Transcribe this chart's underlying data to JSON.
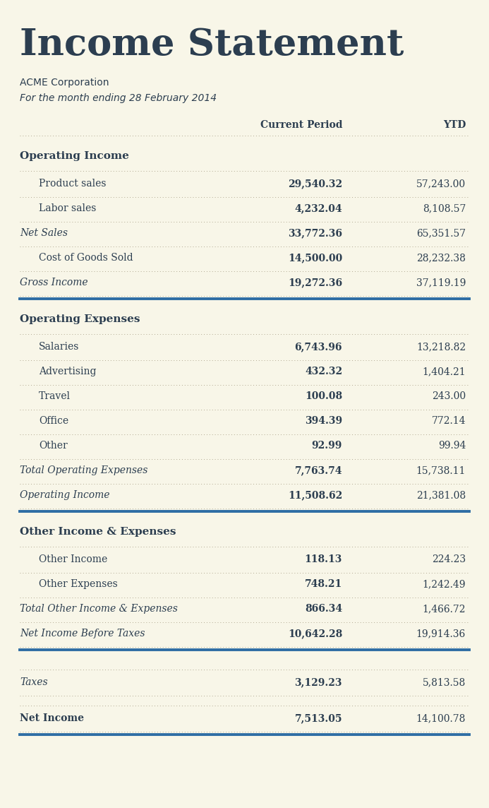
{
  "title": "Income Statement",
  "company": "ACME Corporation",
  "period": "For the month ending 28 February 2014",
  "bg_color": "#f8f6e8",
  "header_color": "#2c3e50",
  "blue_line_color": "#2e6da4",
  "dot_line_color": "#b0a890",
  "col_header": [
    "Current Period",
    "YTD"
  ],
  "sections": [
    {
      "section_title": "Operating Income",
      "rows": [
        {
          "label": "Product sales",
          "cp": "29,540.32",
          "ytd": "57,243.00",
          "indent": true,
          "cp_bold": true,
          "label_italic": false,
          "label_bold": false
        },
        {
          "label": "Labor sales",
          "cp": "4,232.04",
          "ytd": "8,108.57",
          "indent": true,
          "cp_bold": true,
          "label_italic": false,
          "label_bold": false
        },
        {
          "label": "Net Sales",
          "cp": "33,772.36",
          "ytd": "65,351.57",
          "indent": false,
          "cp_bold": true,
          "label_italic": true,
          "label_bold": false
        },
        {
          "label": "Cost of Goods Sold",
          "cp": "14,500.00",
          "ytd": "28,232.38",
          "indent": true,
          "cp_bold": true,
          "label_italic": false,
          "label_bold": false
        },
        {
          "label": "Gross Income",
          "cp": "19,272.36",
          "ytd": "37,119.19",
          "indent": false,
          "cp_bold": true,
          "label_italic": true,
          "label_bold": false
        }
      ],
      "end_thick_line": true
    },
    {
      "section_title": "Operating Expenses",
      "rows": [
        {
          "label": "Salaries",
          "cp": "6,743.96",
          "ytd": "13,218.82",
          "indent": true,
          "cp_bold": true,
          "label_italic": false,
          "label_bold": false
        },
        {
          "label": "Advertising",
          "cp": "432.32",
          "ytd": "1,404.21",
          "indent": true,
          "cp_bold": true,
          "label_italic": false,
          "label_bold": false
        },
        {
          "label": "Travel",
          "cp": "100.08",
          "ytd": "243.00",
          "indent": true,
          "cp_bold": true,
          "label_italic": false,
          "label_bold": false
        },
        {
          "label": "Office",
          "cp": "394.39",
          "ytd": "772.14",
          "indent": true,
          "cp_bold": true,
          "label_italic": false,
          "label_bold": false
        },
        {
          "label": "Other",
          "cp": "92.99",
          "ytd": "99.94",
          "indent": true,
          "cp_bold": true,
          "label_italic": false,
          "label_bold": false
        },
        {
          "label": "Total Operating Expenses",
          "cp": "7,763.74",
          "ytd": "15,738.11",
          "indent": false,
          "cp_bold": true,
          "label_italic": true,
          "label_bold": false
        },
        {
          "label": "Operating Income",
          "cp": "11,508.62",
          "ytd": "21,381.08",
          "indent": false,
          "cp_bold": true,
          "label_italic": true,
          "label_bold": false
        }
      ],
      "end_thick_line": true
    },
    {
      "section_title": "Other Income & Expenses",
      "rows": [
        {
          "label": "Other Income",
          "cp": "118.13",
          "ytd": "224.23",
          "indent": true,
          "cp_bold": true,
          "label_italic": false,
          "label_bold": false
        },
        {
          "label": "Other Expenses",
          "cp": "748.21",
          "ytd": "1,242.49",
          "indent": true,
          "cp_bold": true,
          "label_italic": false,
          "label_bold": false
        },
        {
          "label": "Total Other Income & Expenses",
          "cp": "866.34",
          "ytd": "1,466.72",
          "indent": false,
          "cp_bold": true,
          "label_italic": true,
          "label_bold": false
        },
        {
          "label": "Net Income Before Taxes",
          "cp": "10,642.28",
          "ytd": "19,914.36",
          "indent": false,
          "cp_bold": true,
          "label_italic": true,
          "label_bold": false
        }
      ],
      "end_thick_line": true
    },
    {
      "section_title": null,
      "rows": [
        {
          "label": "Taxes",
          "cp": "3,129.23",
          "ytd": "5,813.58",
          "indent": false,
          "cp_bold": true,
          "label_italic": true,
          "label_bold": false
        }
      ],
      "end_thick_line": false
    },
    {
      "section_title": null,
      "rows": [
        {
          "label": "Net Income",
          "cp": "7,513.05",
          "ytd": "14,100.78",
          "indent": false,
          "cp_bold": true,
          "label_italic": false,
          "label_bold": true
        }
      ],
      "end_thick_line": true
    }
  ],
  "title_fontsize": 38,
  "company_fontsize": 10,
  "period_fontsize": 10,
  "header_fontsize": 10,
  "row_fontsize": 10,
  "section_fontsize": 11
}
